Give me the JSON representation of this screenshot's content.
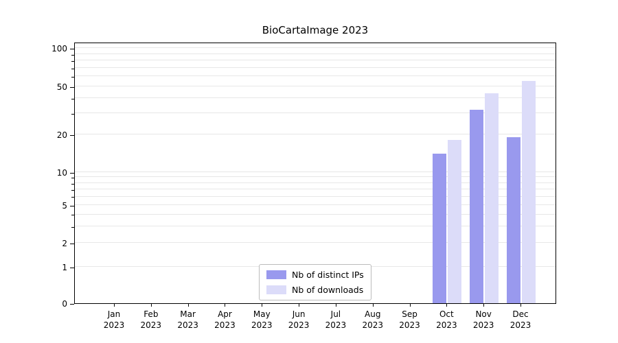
{
  "title": "BioCartaImage 2023",
  "chart_data": {
    "type": "bar",
    "title": "BioCartaImage 2023",
    "categories": [
      "Jan 2023",
      "Feb 2023",
      "Mar 2023",
      "Apr 2023",
      "May 2023",
      "Jun 2023",
      "Jul 2023",
      "Aug 2023",
      "Sep 2023",
      "Oct 2023",
      "Nov 2023",
      "Dec 2023"
    ],
    "series": [
      {
        "name": "Nb of distinct IPs",
        "color": "#9999ee",
        "values": [
          0,
          0,
          0,
          0,
          0,
          0,
          0,
          0,
          0,
          14,
          32,
          19
        ]
      },
      {
        "name": "Nb of downloads",
        "color": "#dcdcf9",
        "values": [
          0,
          0,
          0,
          0,
          0,
          0,
          0,
          0,
          0,
          18,
          44,
          55
        ]
      }
    ],
    "yscale": "symlog",
    "y_ticks": [
      0,
      1,
      2,
      5,
      10,
      20,
      50,
      100
    ],
    "ylim": [
      0,
      100
    ],
    "xlabel": "",
    "ylabel": "",
    "grid": true,
    "legend_position": "lower center"
  }
}
